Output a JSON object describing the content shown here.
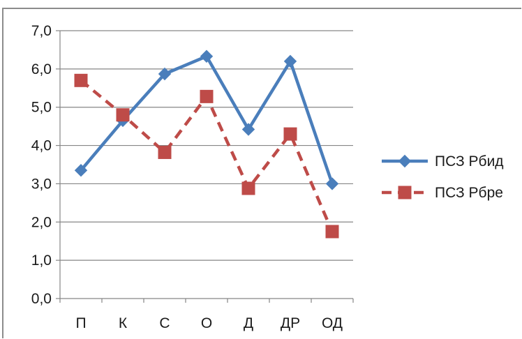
{
  "chart_data": {
    "type": "line",
    "categories": [
      "П",
      "К",
      "С",
      "О",
      "Д",
      "ДР",
      "ОД"
    ],
    "series": [
      {
        "name": "ПСЗ Рбид",
        "values": [
          3.35,
          4.65,
          5.87,
          6.33,
          4.42,
          6.2,
          3.0
        ],
        "color": "#4a7ebb",
        "line_style": "solid",
        "marker": "diamond"
      },
      {
        "name": "ПСЗ Рбре",
        "values": [
          5.7,
          4.8,
          3.82,
          5.28,
          2.88,
          4.3,
          1.75
        ],
        "color": "#be4b48",
        "line_style": "dashed",
        "marker": "square"
      }
    ],
    "ylim": [
      0,
      7
    ],
    "y_ticks": [
      "0,0",
      "1,0",
      "2,0",
      "3,0",
      "4,0",
      "5,0",
      "6,0",
      "7,0"
    ],
    "title": "",
    "xlabel": "",
    "ylabel": "",
    "grid": "horizontal",
    "legend_position": "right"
  }
}
